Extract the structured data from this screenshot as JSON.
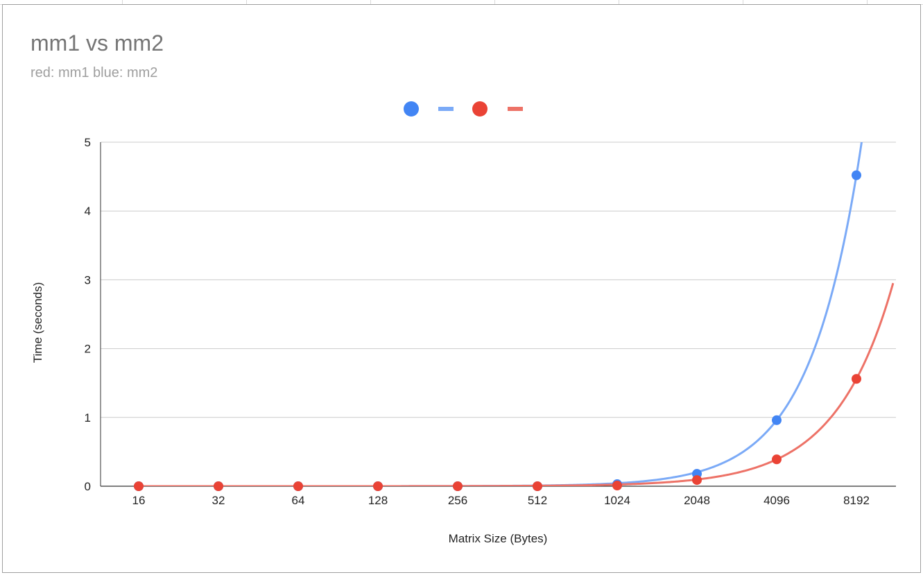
{
  "chart_data": {
    "type": "scatter",
    "title": "mm1 vs mm2",
    "subtitle": "red: mm1 blue: mm2",
    "xlabel": "Matrix Size (Bytes)",
    "ylabel": "Time (seconds)",
    "categories": [
      "16",
      "32",
      "64",
      "128",
      "256",
      "512",
      "1024",
      "2048",
      "4096",
      "8192"
    ],
    "ylim": [
      0,
      5
    ],
    "yticks": [
      0,
      1,
      2,
      3,
      4,
      5
    ],
    "grid": true,
    "legend_position": "top",
    "series": [
      {
        "color": "#4285f4",
        "trendline_color": "#7baaf7",
        "values": [
          0,
          0,
          0,
          0,
          0,
          0,
          0.03,
          0.18,
          0.96,
          4.52
        ],
        "trendline": "exponential"
      },
      {
        "color": "#ea4335",
        "trendline_color": "#ed7267",
        "values": [
          0,
          0,
          0,
          0,
          0,
          0,
          0.01,
          0.09,
          0.39,
          1.56
        ],
        "trendline": "exponential"
      }
    ]
  }
}
